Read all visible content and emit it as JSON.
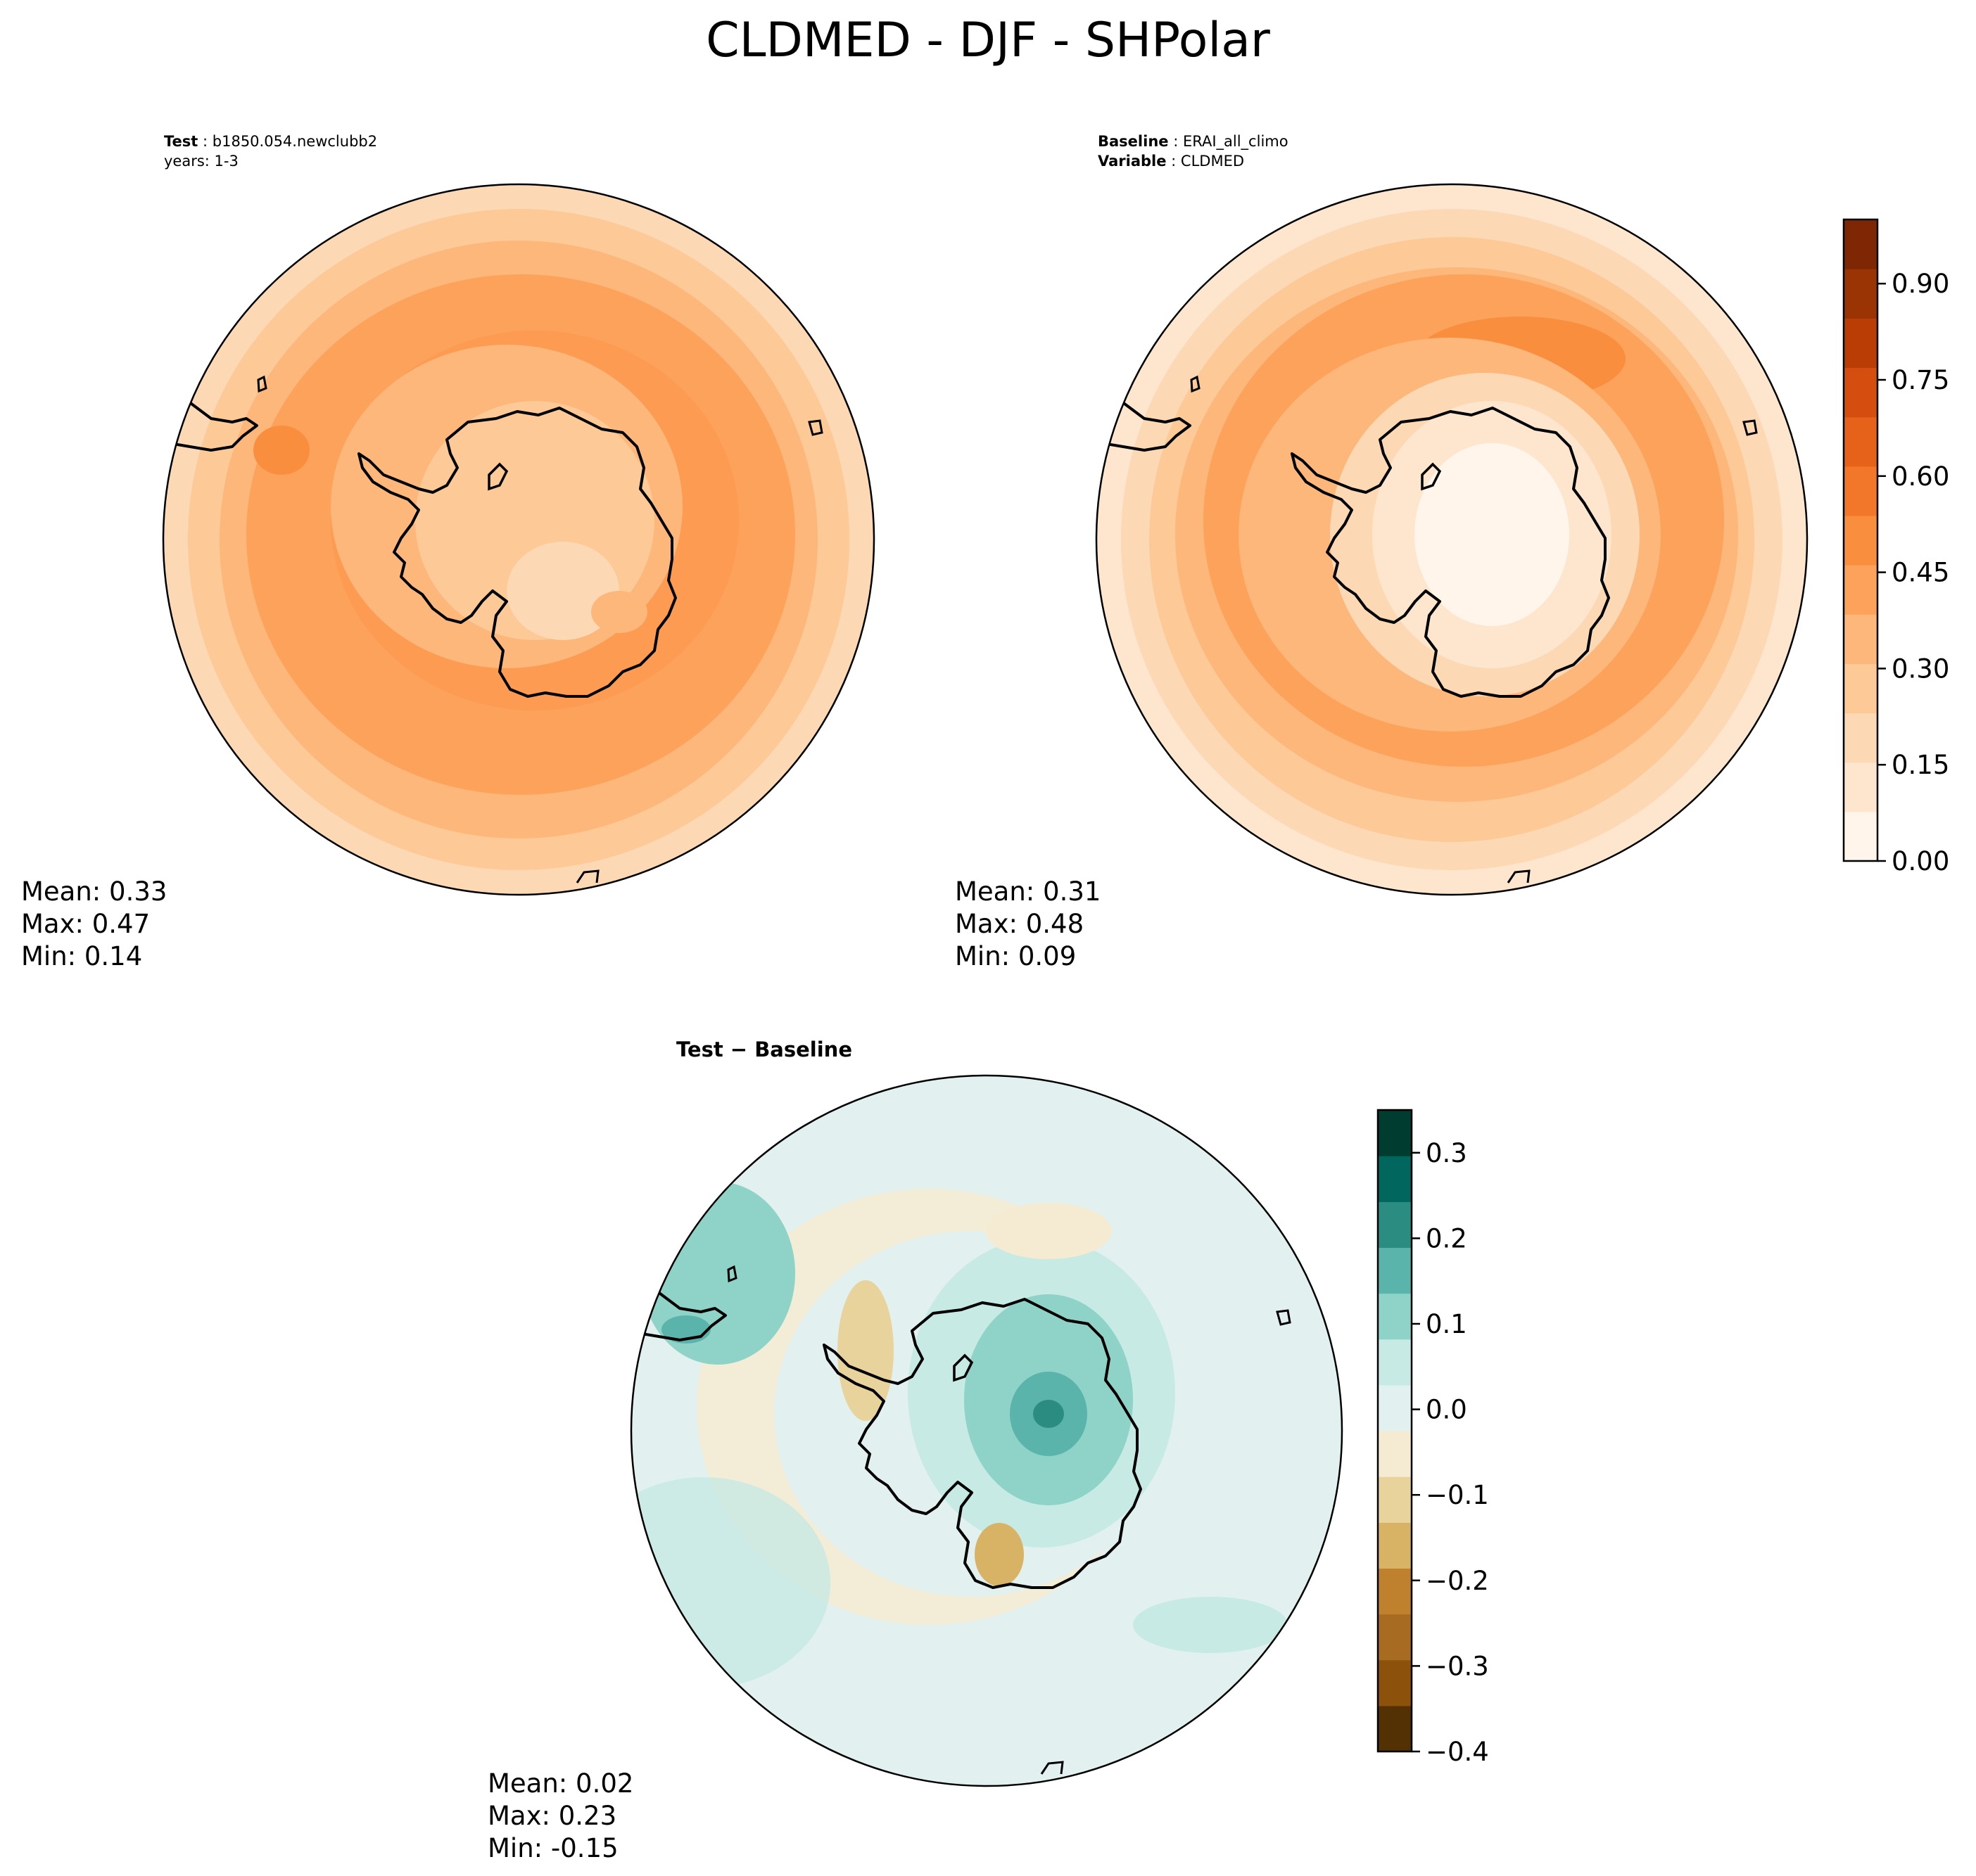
{
  "figure": {
    "title": "CLDMED - DJF - SHPolar"
  },
  "colors": {
    "sequential_scale": [
      "#fff5eb",
      "#fee6ce",
      "#fdd8b4",
      "#fdc997",
      "#fdb77a",
      "#fda25b",
      "#f98e3f",
      "#f3772a",
      "#e6621a",
      "#d54d0f",
      "#b93d05",
      "#9a3404",
      "#7f2704"
    ],
    "diverging_scale": [
      "#543005",
      "#8c510a",
      "#a76b22",
      "#bf812d",
      "#d8b366",
      "#e9d39d",
      "#f5ebd3",
      "#e2f1ef",
      "#c7eae5",
      "#8fd3c8",
      "#5ab4ac",
      "#2b8c82",
      "#01665e",
      "#003c30"
    ],
    "coastline": "#000000"
  },
  "panels": {
    "test": {
      "label_bold": "Test",
      "label_value": "b1850.054.newclubb2",
      "label_line2": "years: 1-3",
      "stats": {
        "mean": "Mean:  0.33",
        "max": "Max:  0.47",
        "min": "Min:  0.14"
      }
    },
    "baseline": {
      "label_bold": "Baseline",
      "label_value": "ERAI_all_climo",
      "label2_bold": "Variable",
      "label2_value": "CLDMED",
      "stats": {
        "mean": "Mean:  0.31",
        "max": "Max:  0.48",
        "min": "Min:  0.09"
      }
    },
    "diff": {
      "title": "Test − Baseline",
      "stats": {
        "mean": "Mean:  0.02",
        "max": "Max:  0.23",
        "min": "Min: -0.15"
      }
    }
  },
  "chart_data": [
    {
      "type": "heatmap",
      "panel": "Test",
      "projection": "South polar stereographic",
      "variable": "CLDMED",
      "mean": 0.33,
      "max": 0.47,
      "min": 0.14
    },
    {
      "type": "heatmap",
      "panel": "Baseline",
      "projection": "South polar stereographic",
      "variable": "CLDMED",
      "mean": 0.31,
      "max": 0.48,
      "min": 0.09
    },
    {
      "type": "heatmap",
      "panel": "Test - Baseline",
      "projection": "South polar stereographic",
      "mean": 0.02,
      "max": 0.23,
      "min": -0.15
    }
  ],
  "colorbars": {
    "main": {
      "range": [
        0.0,
        1.0
      ],
      "ticks": [
        0.0,
        0.15,
        0.3,
        0.45,
        0.6,
        0.75,
        0.9
      ],
      "tick_labels": [
        "0.00",
        "0.15",
        "0.30",
        "0.45",
        "0.60",
        "0.75",
        "0.90"
      ]
    },
    "diff": {
      "range": [
        -0.4,
        0.35
      ],
      "ticks": [
        -0.4,
        -0.3,
        -0.2,
        -0.1,
        0.0,
        0.1,
        0.2,
        0.3
      ],
      "tick_labels": [
        "−0.4",
        "−0.3",
        "−0.2",
        "−0.1",
        "0.0",
        "0.1",
        "0.2",
        "0.3"
      ]
    }
  }
}
